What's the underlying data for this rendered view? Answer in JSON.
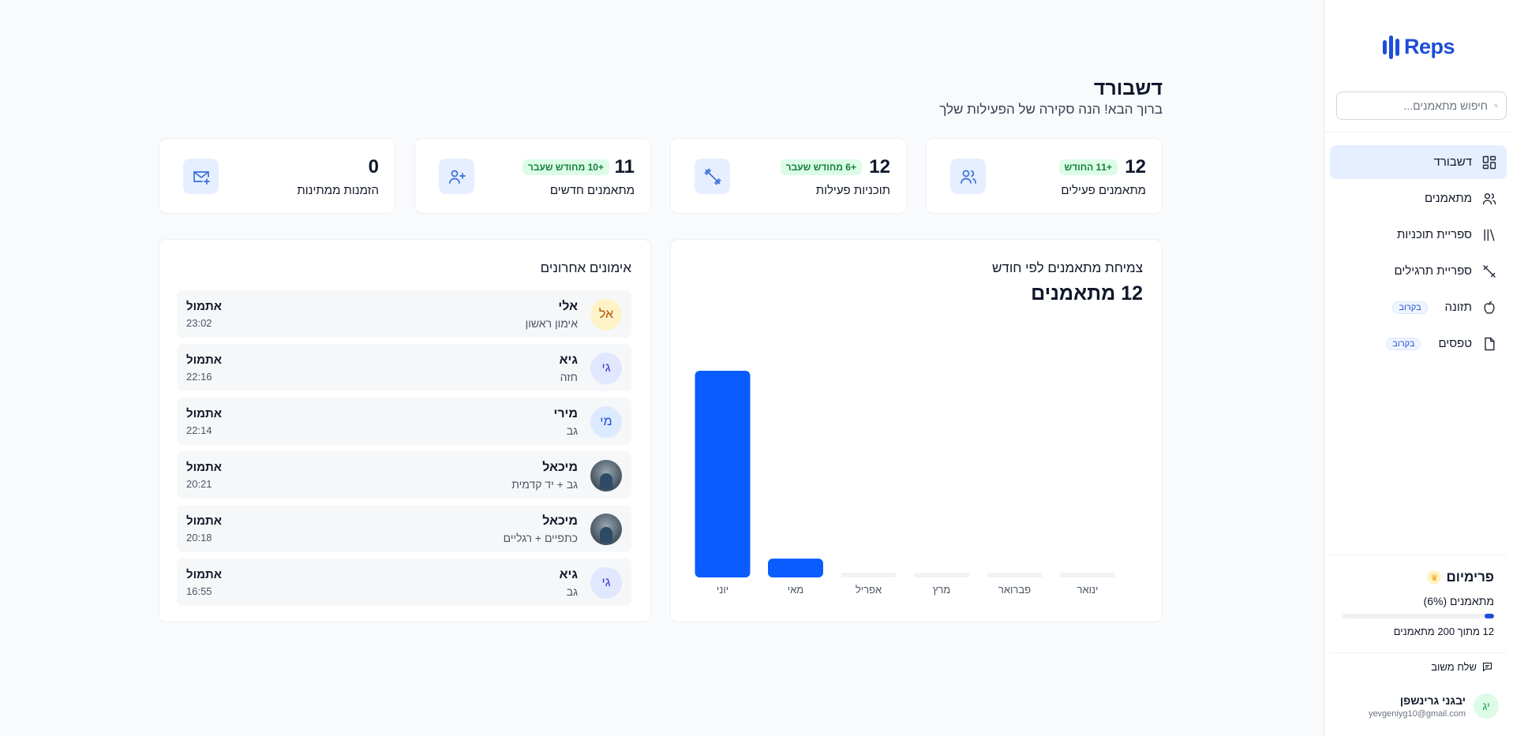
{
  "sidebar": {
    "logo_text": "Reps",
    "search_placeholder": "חיפוש מתאמנים...",
    "items": [
      {
        "label": "דשבורד",
        "icon": "dashboard-icon",
        "active": true
      },
      {
        "label": "מתאמנים",
        "icon": "users-icon"
      },
      {
        "label": "ספריית תוכניות",
        "icon": "library-icon"
      },
      {
        "label": "ספריית תרגילים",
        "icon": "dumbbell-icon"
      },
      {
        "label": "תזונה",
        "icon": "apple-icon",
        "badge": "בקרוב"
      },
      {
        "label": "טפסים",
        "icon": "file-icon",
        "badge": "בקרוב"
      }
    ],
    "premium": {
      "title": "פרימיום",
      "subtitle": "מתאמנים (6%)",
      "progress": 0.06,
      "count_text": "12 מתוך 200 מתאמנים"
    },
    "feedback_label": "שלח משוב",
    "user": {
      "initials": "יג",
      "name": "יבגני גרינשפן",
      "email": "yevgeniyg10@gmail.com"
    }
  },
  "header": {
    "title": "דשבורד",
    "subtitle": "ברוך הבא! הנה סקירה של הפעילות שלך"
  },
  "stats": [
    {
      "value": "12",
      "badge": "+11 החודש",
      "label": "מתאמנים פעילים",
      "icon": "users-icon"
    },
    {
      "value": "12",
      "badge": "+6 מחודש שעבר",
      "label": "תוכניות פעילות",
      "icon": "dumbbell-icon"
    },
    {
      "value": "11",
      "badge": "+10 מחודש שעבר",
      "label": "מתאמנים חדשים",
      "icon": "user-plus-icon"
    },
    {
      "value": "0",
      "badge": "",
      "label": "הזמנות ממתינות",
      "icon": "mail-plus-icon"
    }
  ],
  "growth_chart": {
    "title": "צמיחת מתאמנים לפי חודש",
    "total": "12 מתאמנים"
  },
  "chart_data": {
    "type": "bar",
    "categories": [
      "ינואר",
      "פברואר",
      "מרץ",
      "אפריל",
      "מאי",
      "יוני"
    ],
    "values": [
      0,
      0,
      0,
      0,
      1,
      11
    ],
    "ylim": [
      0,
      11
    ],
    "color": "#0a5cff",
    "empty_color": "#f1f3f5",
    "grid": false,
    "legend": "none"
  },
  "workouts": {
    "title": "אימונים אחרונים",
    "items": [
      {
        "initials": "אל",
        "avatar_bg": "#fef3c7",
        "avatar_fg": "#b45309",
        "name": "אלי",
        "type": "אימון ראשון",
        "day": "אתמול",
        "time": "23:02"
      },
      {
        "initials": "גי",
        "avatar_bg": "#e0e7ff",
        "avatar_fg": "#4338ca",
        "name": "גיא",
        "type": "חזה",
        "day": "אתמול",
        "time": "22:16"
      },
      {
        "initials": "מי",
        "avatar_bg": "#dbeafe",
        "avatar_fg": "#1d4ed8",
        "name": "מירי",
        "type": "גב",
        "day": "אתמול",
        "time": "22:14"
      },
      {
        "initials": "",
        "photo": true,
        "name": "מיכאל",
        "type": "גב + יד קדמית",
        "day": "אתמול",
        "time": "20:21"
      },
      {
        "initials": "",
        "photo": true,
        "name": "מיכאל",
        "type": "כתפיים + רגליים",
        "day": "אתמול",
        "time": "20:18"
      },
      {
        "initials": "גי",
        "avatar_bg": "#e0e7ff",
        "avatar_fg": "#4338ca",
        "name": "גיא",
        "type": "גב",
        "day": "אתמול",
        "time": "16:55"
      }
    ]
  },
  "colors": {
    "accent": "#1d4ed8",
    "badge_green": "#15803d",
    "badge_green_bg": "#dcfce7",
    "icon_bg": "#e5efff"
  }
}
